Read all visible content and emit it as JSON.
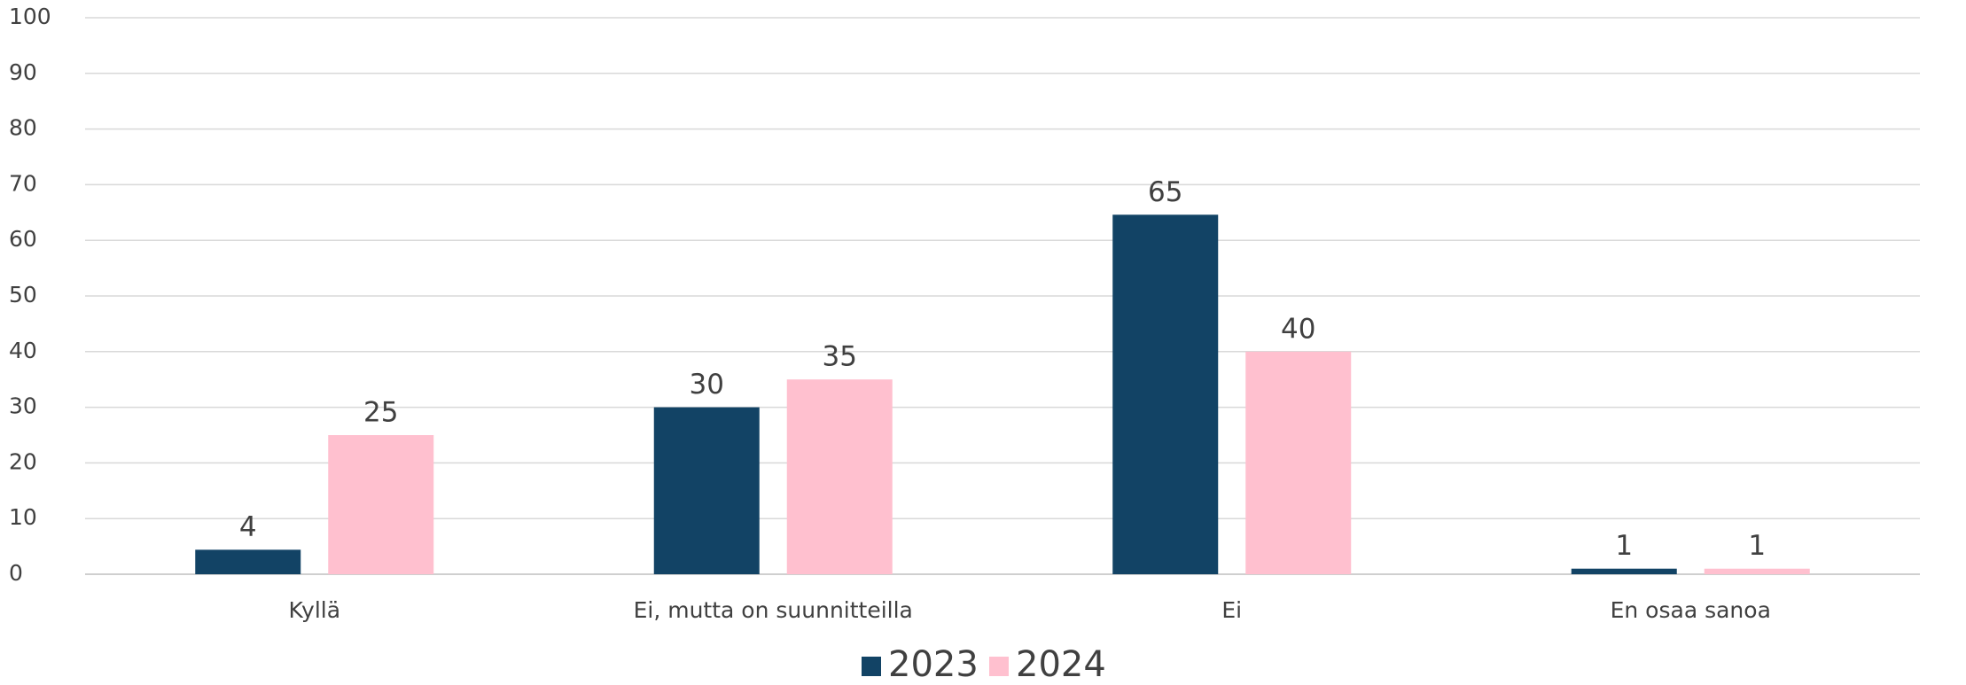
{
  "chart_data": {
    "type": "bar",
    "categories": [
      "Kyllä",
      "Ei, mutta on suunnitteilla",
      "Ei",
      "En osaa sanoa"
    ],
    "series": [
      {
        "name": "2023",
        "color": "#124365",
        "values": [
          4.4,
          30,
          64.6,
          1
        ],
        "value_labels": [
          "4",
          "30",
          "65",
          "1"
        ]
      },
      {
        "name": "2024",
        "color": "#ffc0cf",
        "values": [
          25,
          35,
          40,
          1
        ],
        "value_labels": [
          "25",
          "35",
          "40",
          "1"
        ]
      }
    ],
    "ylim": [
      0,
      100
    ],
    "yticks": [
      0,
      10,
      20,
      30,
      40,
      50,
      60,
      70,
      80,
      90,
      100
    ],
    "grid": true,
    "legend": "bottom"
  }
}
